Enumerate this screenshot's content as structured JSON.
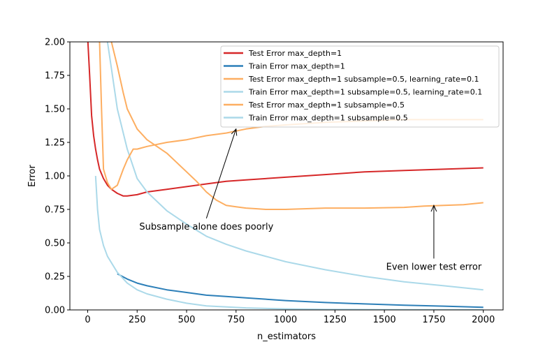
{
  "chart_data": {
    "type": "line",
    "title": "",
    "xlabel": "n_estimators",
    "ylabel": "Error",
    "xlim": [
      -90,
      2100
    ],
    "ylim": [
      0.0,
      2.0
    ],
    "xticks": [
      0,
      250,
      500,
      750,
      1000,
      1250,
      1500,
      1750,
      2000
    ],
    "yticks": [
      0.0,
      0.25,
      0.5,
      0.75,
      1.0,
      1.25,
      1.5,
      1.75,
      2.0
    ],
    "xtick_labels": [
      "0",
      "250",
      "500",
      "750",
      "1000",
      "1250",
      "1500",
      "1750",
      "2000"
    ],
    "ytick_labels": [
      "0.00",
      "0.25",
      "0.50",
      "0.75",
      "1.00",
      "1.25",
      "1.50",
      "1.75",
      "2.00"
    ],
    "grid": false,
    "legend_position": "top-right",
    "series": [
      {
        "name": "Test Error max_depth=1",
        "color": "#d62728",
        "x": [
          1,
          10,
          20,
          30,
          40,
          50,
          60,
          80,
          100,
          120,
          150,
          180,
          200,
          250,
          300,
          400,
          500,
          600,
          700,
          800,
          1000,
          1200,
          1400,
          1600,
          1800,
          2000
        ],
        "y": [
          2.0,
          1.75,
          1.45,
          1.3,
          1.2,
          1.12,
          1.05,
          0.98,
          0.93,
          0.9,
          0.87,
          0.85,
          0.85,
          0.86,
          0.88,
          0.9,
          0.92,
          0.94,
          0.96,
          0.97,
          0.99,
          1.01,
          1.03,
          1.04,
          1.05,
          1.06
        ]
      },
      {
        "name": "Train Error max_depth=1",
        "color": "#2c7fb8",
        "x": [
          150,
          200,
          250,
          300,
          400,
          500,
          600,
          700,
          800,
          1000,
          1200,
          1400,
          1600,
          1800,
          2000
        ],
        "y": [
          0.27,
          0.23,
          0.2,
          0.18,
          0.15,
          0.13,
          0.11,
          0.1,
          0.09,
          0.07,
          0.055,
          0.045,
          0.035,
          0.028,
          0.02
        ]
      },
      {
        "name": "Test Error max_depth=1 subsample=0.5, learning_rate=0.1",
        "color": "#fdae61",
        "x": [
          120,
          150,
          180,
          200,
          250,
          300,
          350,
          400,
          450,
          500,
          550,
          600,
          650,
          700,
          750,
          800,
          850,
          900,
          1000,
          1200,
          1400,
          1600,
          1700,
          1800,
          1900,
          2000
        ],
        "y": [
          2.0,
          1.82,
          1.62,
          1.5,
          1.35,
          1.27,
          1.22,
          1.17,
          1.1,
          1.03,
          0.96,
          0.88,
          0.82,
          0.78,
          0.77,
          0.76,
          0.755,
          0.75,
          0.75,
          0.76,
          0.76,
          0.765,
          0.775,
          0.78,
          0.785,
          0.8
        ]
      },
      {
        "name": "Train Error max_depth=1 subsample=0.5, learning_rate=0.1",
        "color": "#abd9e9",
        "x": [
          100,
          120,
          150,
          200,
          250,
          300,
          400,
          500,
          600,
          700,
          800,
          1000,
          1200,
          1400,
          1600,
          1800,
          2000
        ],
        "y": [
          2.0,
          1.8,
          1.5,
          1.2,
          0.98,
          0.88,
          0.74,
          0.64,
          0.55,
          0.49,
          0.44,
          0.36,
          0.3,
          0.25,
          0.21,
          0.18,
          0.15
        ]
      },
      {
        "name": "Test Error max_depth=1 subsample=0.5",
        "color": "#fdae61",
        "x": [
          60,
          70,
          80,
          100,
          120,
          150,
          180,
          200,
          230,
          250,
          300,
          400,
          500,
          600,
          700,
          800,
          900,
          1000,
          1200,
          1400,
          1600,
          1800,
          2000
        ],
        "y": [
          2.0,
          1.5,
          1.05,
          0.95,
          0.9,
          0.93,
          1.05,
          1.12,
          1.2,
          1.2,
          1.22,
          1.25,
          1.27,
          1.3,
          1.32,
          1.35,
          1.37,
          1.38,
          1.4,
          1.41,
          1.42,
          1.42,
          1.42
        ]
      },
      {
        "name": "Train Error max_depth=1 subsample=0.5",
        "color": "#abd9e9",
        "x": [
          40,
          50,
          60,
          80,
          100,
          150,
          200,
          250,
          300,
          400,
          500,
          600,
          800,
          1000,
          1200,
          1500,
          2000
        ],
        "y": [
          1.0,
          0.75,
          0.6,
          0.48,
          0.4,
          0.28,
          0.2,
          0.15,
          0.12,
          0.08,
          0.05,
          0.03,
          0.015,
          0.008,
          0.004,
          0.002,
          0.001
        ]
      }
    ],
    "annotations": [
      {
        "text": "Subsample alone does poorly",
        "xy": [
          750,
          1.35
        ],
        "xytext": [
          600,
          0.6
        ]
      },
      {
        "text": "Even lower test error",
        "xy": [
          1750,
          0.78
        ],
        "xytext": [
          1750,
          0.3
        ]
      }
    ]
  }
}
